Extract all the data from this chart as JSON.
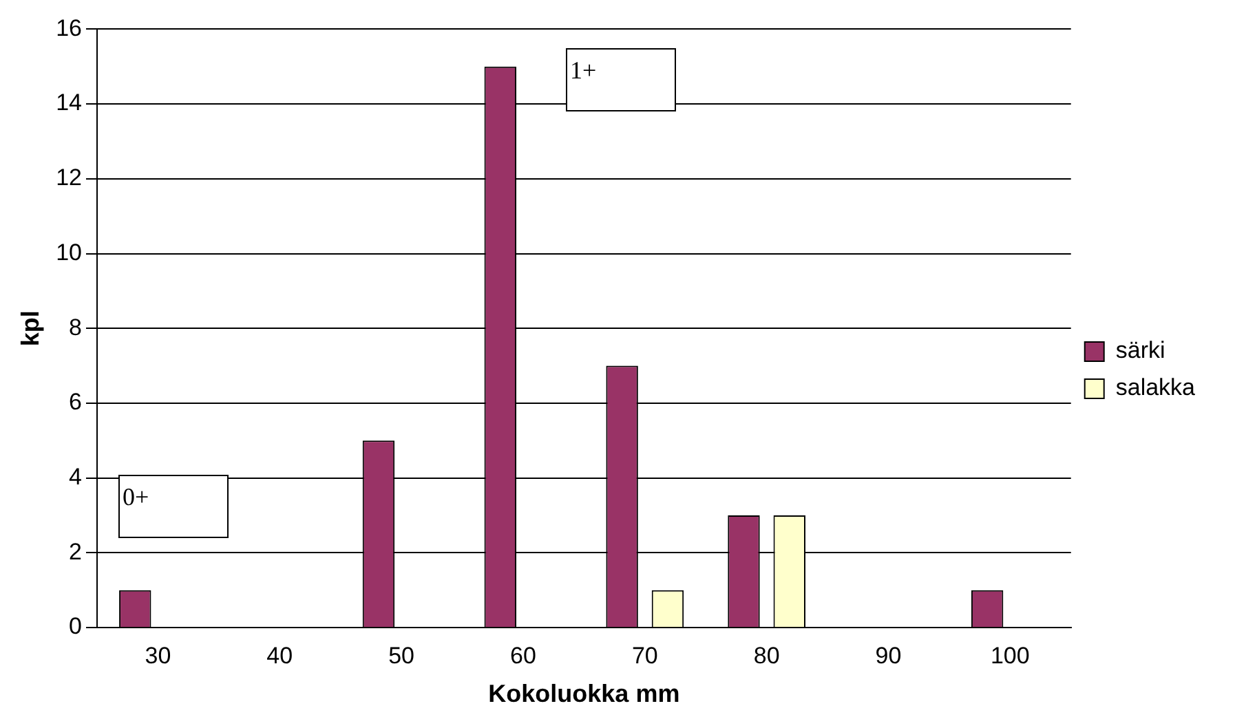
{
  "chart_data": {
    "type": "bar",
    "xlabel": "Kokoluokka mm",
    "ylabel": "kpl",
    "categories": [
      "30",
      "40",
      "50",
      "60",
      "70",
      "80",
      "90",
      "100"
    ],
    "series": [
      {
        "name": "särki",
        "color": "#993366",
        "values": [
          1,
          0,
          5,
          15,
          7,
          3,
          0,
          1
        ]
      },
      {
        "name": "salakka",
        "color": "#ffffcc",
        "values": [
          0,
          0,
          0,
          0,
          1,
          3,
          0,
          0
        ]
      }
    ],
    "ylim": [
      0,
      16
    ],
    "yticks": [
      0,
      2,
      4,
      6,
      8,
      10,
      12,
      14,
      16
    ],
    "grid": "y",
    "legend": "right",
    "annotations": [
      "0+",
      "1+"
    ]
  }
}
